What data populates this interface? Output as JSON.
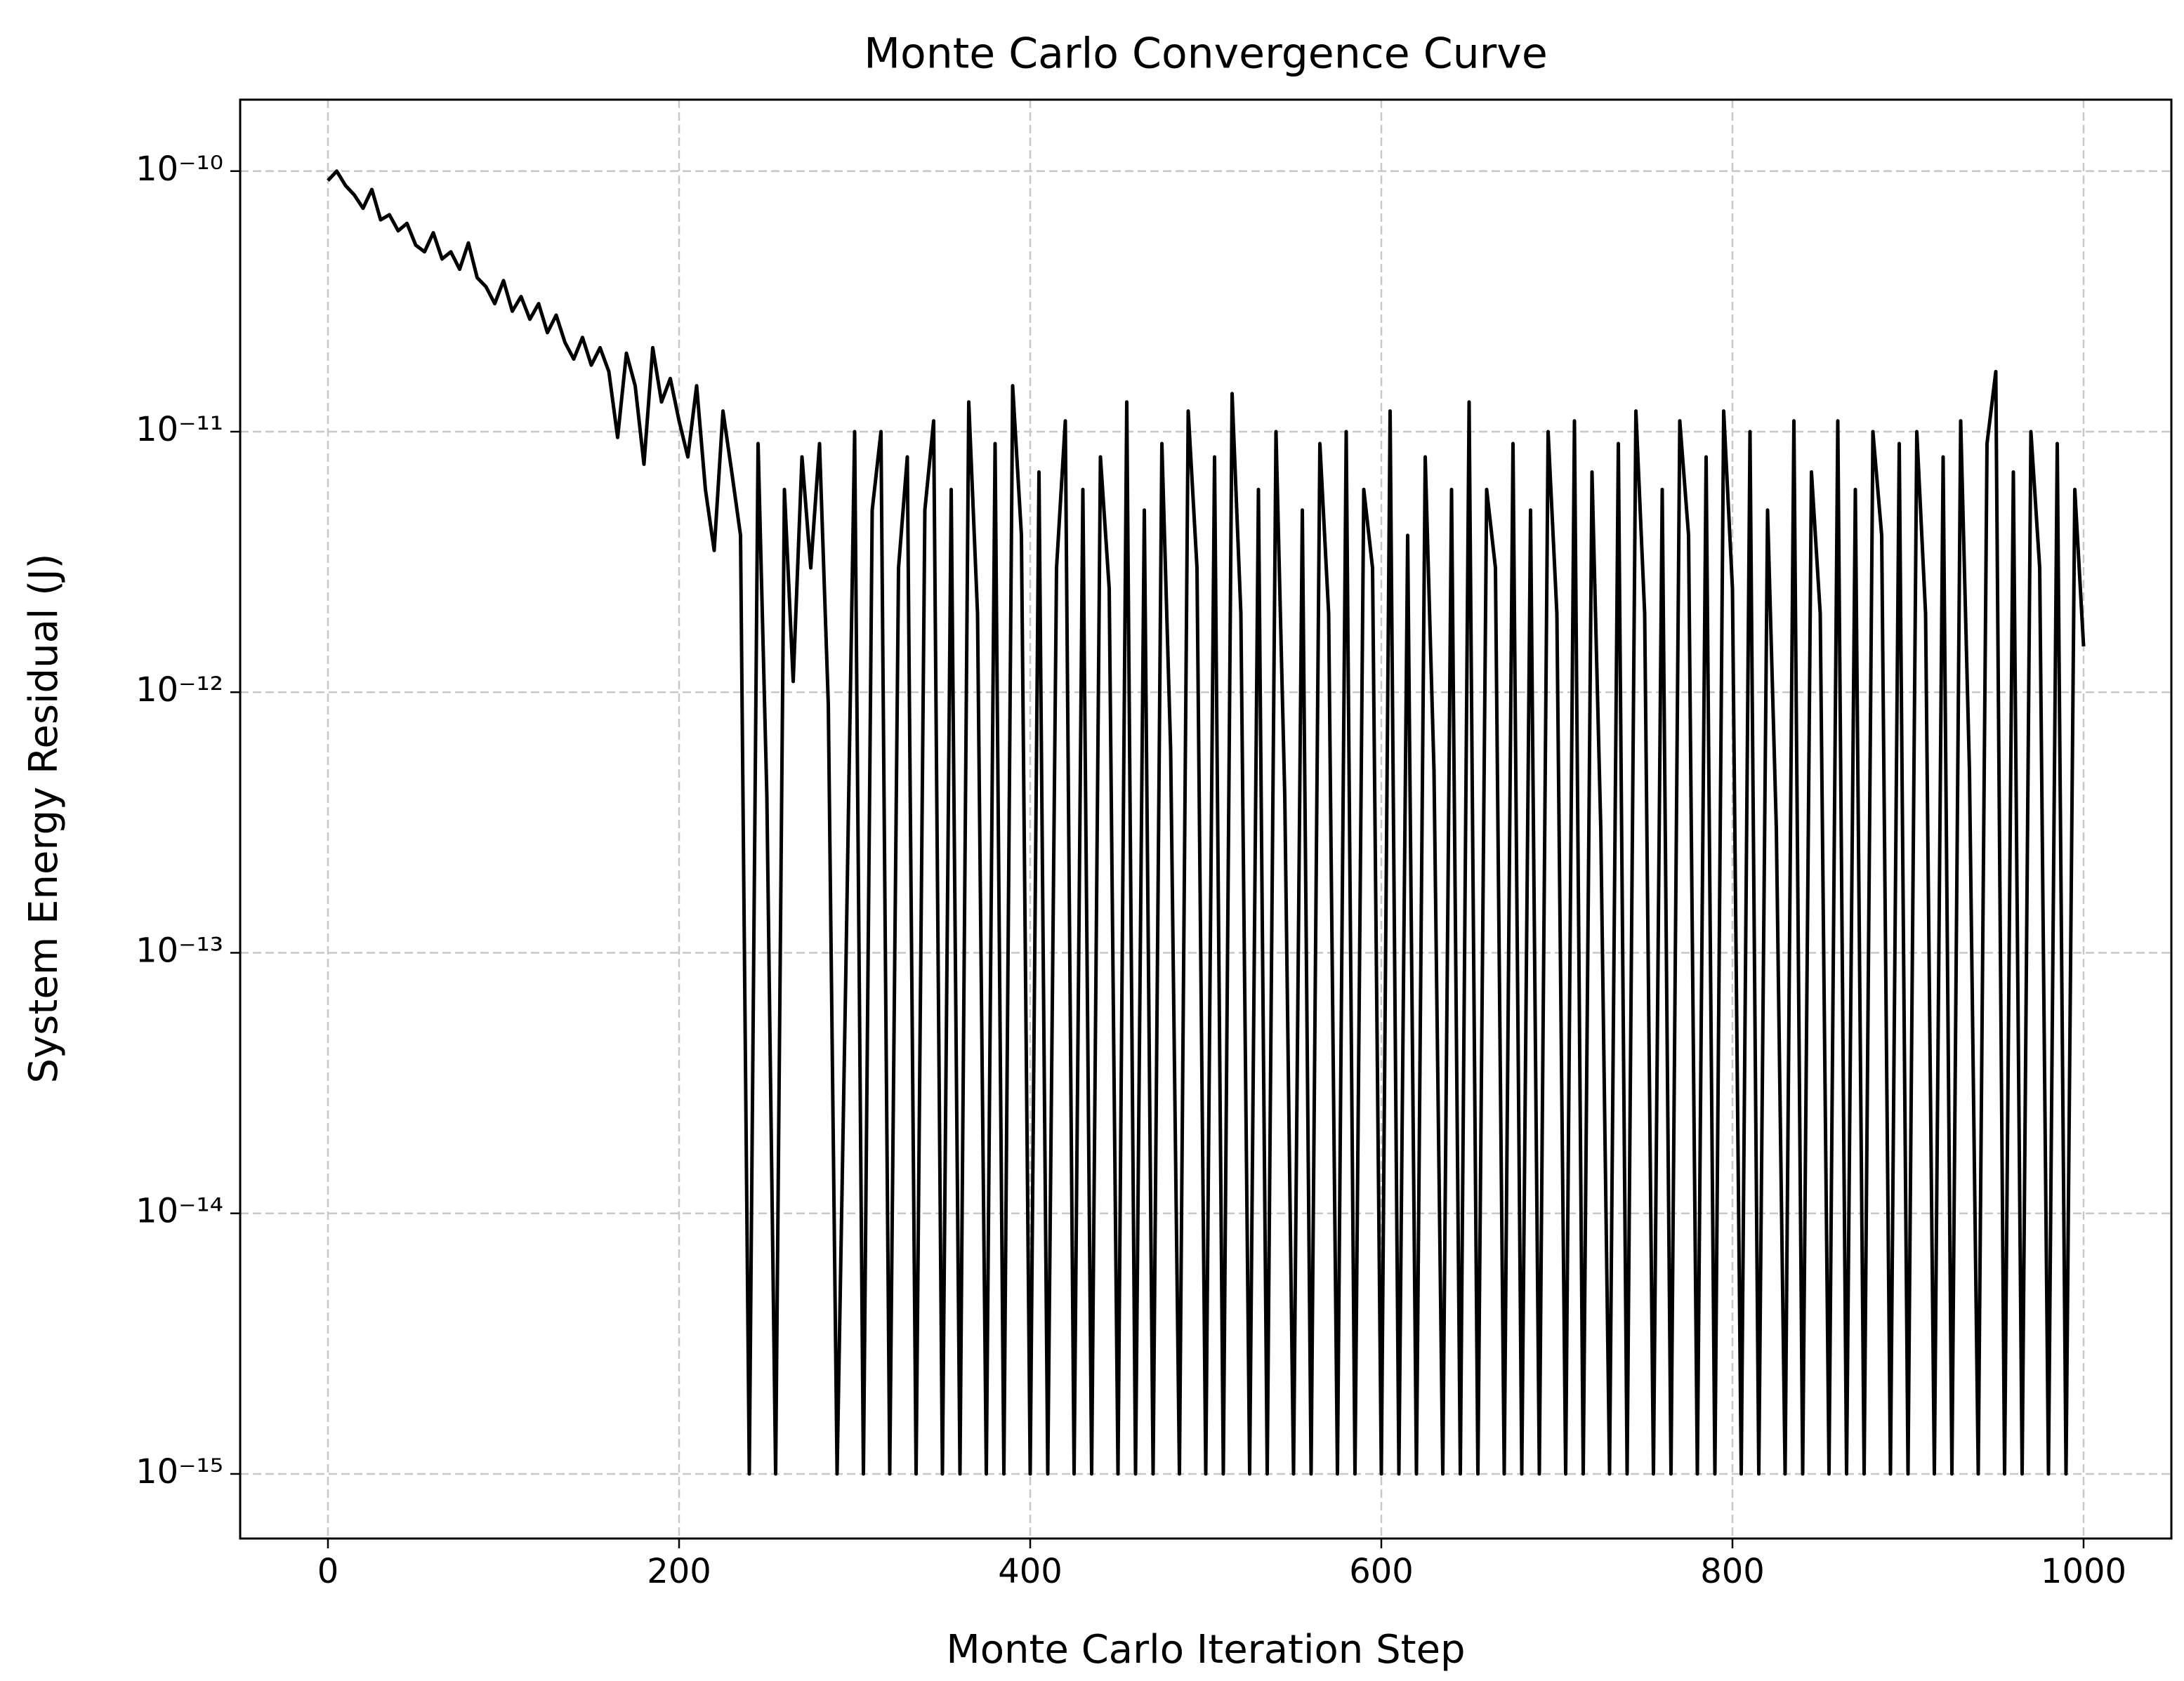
{
  "chart_data": {
    "type": "line",
    "title": "Monte Carlo Convergence Curve",
    "xlabel": "Monte Carlo Iteration Step",
    "ylabel": "System Energy Residual (J)",
    "yscale": "log",
    "grid": true,
    "color": "#000000",
    "xlim": [
      -50,
      1050
    ],
    "xticks": [
      0,
      200,
      400,
      600,
      800,
      1000
    ],
    "ylim": [
      5.65e-16,
      1.88e-10
    ],
    "yticks": [
      {
        "value": 1e-10,
        "label": "10⁻¹⁰"
      },
      {
        "value": 1e-11,
        "label": "10⁻¹¹"
      },
      {
        "value": 1e-12,
        "label": "10⁻¹²"
      },
      {
        "value": 1e-13,
        "label": "10⁻¹³"
      },
      {
        "value": 1e-14,
        "label": "10⁻¹⁴"
      },
      {
        "value": 1e-15,
        "label": "10⁻¹⁵"
      }
    ],
    "x": [
      0,
      5,
      10,
      15,
      20,
      25,
      30,
      35,
      40,
      45,
      50,
      55,
      60,
      65,
      70,
      75,
      80,
      85,
      90,
      95,
      100,
      105,
      110,
      115,
      120,
      125,
      130,
      135,
      140,
      145,
      150,
      155,
      160,
      165,
      170,
      175,
      180,
      185,
      190,
      195,
      200,
      205,
      210,
      215,
      220,
      225,
      230,
      235,
      240,
      245,
      250,
      255,
      260,
      265,
      270,
      275,
      280,
      285,
      290,
      295,
      300,
      305,
      310,
      315,
      320,
      325,
      330,
      335,
      340,
      345,
      350,
      355,
      360,
      365,
      370,
      375,
      380,
      385,
      390,
      395,
      400,
      405,
      410,
      415,
      420,
      425,
      430,
      435,
      440,
      445,
      450,
      455,
      460,
      465,
      470,
      475,
      480,
      485,
      490,
      495,
      500,
      505,
      510,
      515,
      520,
      525,
      530,
      535,
      540,
      545,
      550,
      555,
      560,
      565,
      570,
      575,
      580,
      585,
      590,
      595,
      600,
      605,
      610,
      615,
      620,
      625,
      630,
      635,
      640,
      645,
      650,
      655,
      660,
      665,
      670,
      675,
      680,
      685,
      690,
      695,
      700,
      705,
      710,
      715,
      720,
      725,
      730,
      735,
      740,
      745,
      750,
      755,
      760,
      765,
      770,
      775,
      780,
      785,
      790,
      795,
      800,
      805,
      810,
      815,
      820,
      825,
      830,
      835,
      840,
      845,
      850,
      855,
      860,
      865,
      870,
      875,
      880,
      885,
      890,
      895,
      900,
      905,
      910,
      915,
      920,
      925,
      930,
      935,
      940,
      945,
      950,
      955,
      960,
      965,
      970,
      975,
      980,
      985,
      990,
      995,
      1000
    ],
    "values": [
      9.2e-11,
      1e-10,
      8.8e-11,
      8.1e-11,
      7.2e-11,
      8.5e-11,
      6.5e-11,
      6.8e-11,
      5.9e-11,
      6.3e-11,
      5.2e-11,
      4.9e-11,
      5.8e-11,
      4.6e-11,
      4.9e-11,
      4.2e-11,
      5.3e-11,
      3.9e-11,
      3.6e-11,
      3.1e-11,
      3.8e-11,
      2.9e-11,
      3.3e-11,
      2.7e-11,
      3.1e-11,
      2.4e-11,
      2.8e-11,
      2.2e-11,
      1.9e-11,
      2.3e-11,
      1.8e-11,
      2.1e-11,
      1.7e-11,
      9.5e-12,
      2e-11,
      1.5e-11,
      7.5e-12,
      2.1e-11,
      1.3e-11,
      1.6e-11,
      1.1e-11,
      8e-12,
      1.5e-11,
      6e-12,
      3.5e-12,
      1.2e-11,
      7e-12,
      4e-12,
      1e-15,
      9e-12,
      4e-13,
      1e-15,
      6e-12,
      1.1e-12,
      8e-12,
      3e-12,
      9e-12,
      9e-13,
      1e-15,
      8.5e-14,
      1e-11,
      1e-15,
      5e-12,
      1e-11,
      1e-15,
      3e-12,
      8e-12,
      1e-15,
      5e-12,
      1.1e-11,
      1e-15,
      6e-12,
      1e-15,
      1.3e-11,
      2e-12,
      1e-15,
      9e-12,
      1e-15,
      1.5e-11,
      4e-12,
      1e-15,
      7e-12,
      1e-15,
      3e-12,
      1.1e-11,
      1e-15,
      6e-12,
      1e-15,
      8e-12,
      2.5e-12,
      1e-15,
      1.3e-11,
      1e-15,
      5e-12,
      1e-15,
      9e-12,
      6e-13,
      1e-15,
      1.2e-11,
      3e-12,
      1e-15,
      8e-12,
      1e-15,
      1.4e-11,
      2e-12,
      1e-15,
      6e-12,
      1e-15,
      1e-11,
      4e-13,
      1e-15,
      5e-12,
      1e-15,
      9e-12,
      2e-12,
      1e-15,
      1e-11,
      1e-15,
      6e-12,
      3e-12,
      1e-15,
      1.2e-11,
      1e-15,
      4e-12,
      1e-15,
      8e-12,
      5e-13,
      1e-15,
      6e-12,
      1e-15,
      1.3e-11,
      1e-15,
      6e-12,
      3e-12,
      1e-15,
      9e-12,
      1e-15,
      5e-12,
      1e-15,
      1e-11,
      2e-12,
      1e-15,
      1.1e-11,
      1e-15,
      7e-12,
      3e-13,
      1e-15,
      9e-12,
      1e-15,
      1.2e-11,
      2e-12,
      1e-15,
      6e-12,
      1e-15,
      1.1e-11,
      4e-12,
      1e-15,
      8e-12,
      1e-15,
      1.2e-11,
      2.5e-12,
      1e-15,
      1e-11,
      1e-15,
      5e-12,
      3e-13,
      1e-15,
      1.1e-11,
      1e-15,
      7e-12,
      2e-12,
      1e-15,
      1.1e-11,
      1e-15,
      6e-12,
      1e-15,
      1e-11,
      4e-12,
      1e-15,
      9e-12,
      1e-15,
      1e-11,
      2e-12,
      1e-15,
      8e-12,
      1e-15,
      1.1e-11,
      5e-13,
      1e-15,
      9e-12,
      1.7e-11,
      1e-15,
      7e-12,
      1e-15,
      1e-11,
      3e-12,
      1e-15,
      9e-12,
      1e-15,
      6e-12,
      1.5e-12
    ]
  }
}
